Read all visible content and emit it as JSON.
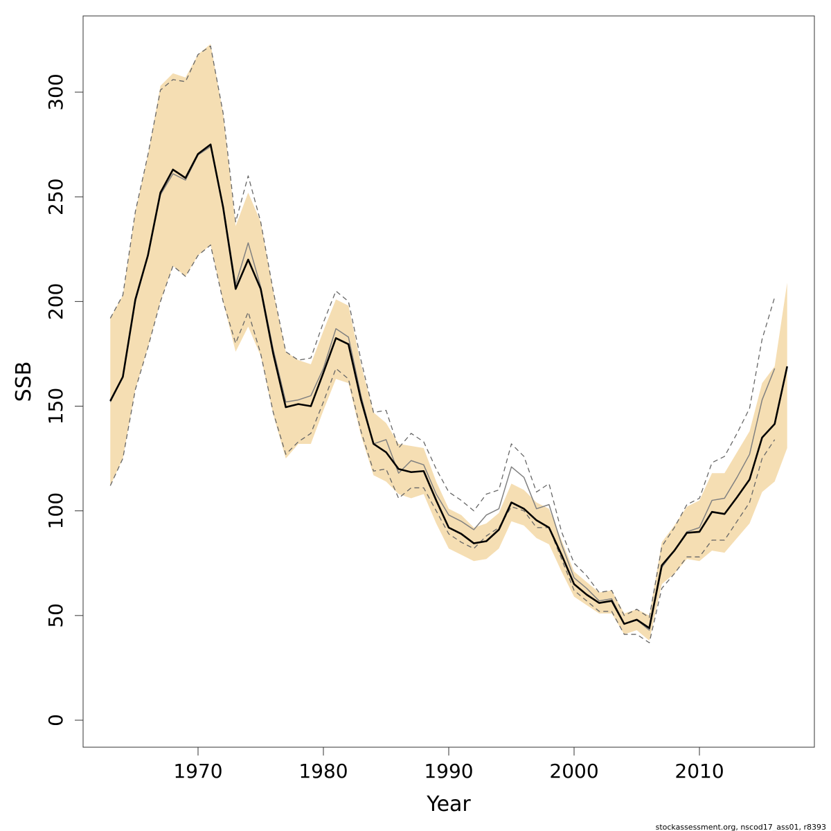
{
  "chart_data": {
    "type": "line",
    "xlabel": "Year",
    "ylabel": "SSB",
    "footnote": "stockassessment.org, nscod17_ass01, r8393",
    "x": [
      1963,
      1964,
      1965,
      1966,
      1967,
      1968,
      1969,
      1970,
      1971,
      1972,
      1973,
      1974,
      1975,
      1976,
      1977,
      1978,
      1979,
      1980,
      1981,
      1982,
      1983,
      1984,
      1985,
      1986,
      1987,
      1988,
      1989,
      1990,
      1991,
      1992,
      1993,
      1994,
      1995,
      1996,
      1997,
      1998,
      1999,
      2000,
      2001,
      2002,
      2003,
      2004,
      2005,
      2006,
      2007,
      2008,
      2009,
      2010,
      2011,
      2012,
      2013,
      2014,
      2015,
      2016,
      2017
    ],
    "band": {
      "color": "#f5deb3",
      "upper": [
        192,
        203,
        243,
        270,
        303,
        309,
        307,
        318,
        323,
        290,
        236,
        252,
        238,
        205,
        176,
        172,
        170,
        186,
        201,
        198,
        170,
        147,
        142,
        132,
        131,
        130,
        114,
        101,
        98,
        92,
        94,
        99,
        113,
        110,
        104,
        101,
        86,
        71,
        66,
        61,
        62,
        51,
        53,
        50,
        85,
        93,
        102,
        105,
        118,
        118,
        128,
        138,
        161,
        169,
        209
      ],
      "lower": [
        112,
        125,
        158,
        178,
        200,
        217,
        212,
        222,
        227,
        200,
        176,
        188,
        174,
        146,
        125,
        132,
        132,
        148,
        163,
        161,
        136,
        117,
        114,
        108,
        106,
        108,
        94,
        82,
        79,
        76,
        77,
        82,
        95,
        93,
        87,
        84,
        71,
        59,
        55,
        51,
        51,
        41,
        43,
        38,
        65,
        70,
        77,
        76,
        81,
        80,
        87,
        94,
        109,
        114,
        130
      ]
    },
    "series": [
      {
        "color": "#808080",
        "width": 1.5,
        "dash": false,
        "values": [
          152,
          164,
          200,
          222,
          251,
          261,
          258,
          270,
          274,
          246,
          208,
          228,
          207,
          177,
          152,
          153,
          155,
          168,
          187,
          183,
          155,
          132,
          134,
          118,
          124,
          122,
          108,
          98,
          95,
          91,
          98,
          101,
          121,
          116,
          101,
          103,
          84,
          68,
          63,
          57,
          58,
          46,
          48,
          43,
          73,
          81,
          90,
          92,
          105,
          106,
          116,
          127,
          153,
          168,
          null
        ]
      },
      {
        "color": "#666666",
        "width": 1.3,
        "dash": true,
        "values": [
          192,
          203,
          243,
          270,
          301,
          306,
          305,
          318,
          322,
          290,
          238,
          260,
          238,
          205,
          176,
          172,
          173,
          190,
          205,
          200,
          172,
          147,
          148,
          130,
          137,
          133,
          120,
          109,
          105,
          100,
          108,
          110,
          132,
          126,
          109,
          113,
          90,
          75,
          69,
          61,
          62,
          50,
          53,
          49,
          83,
          92,
          103,
          106,
          123,
          126,
          137,
          149,
          182,
          202,
          null
        ]
      },
      {
        "color": "#666666",
        "width": 1.3,
        "dash": true,
        "values": [
          112,
          125,
          158,
          178,
          200,
          217,
          212,
          222,
          227,
          200,
          180,
          195,
          175,
          147,
          127,
          133,
          137,
          152,
          168,
          163,
          138,
          119,
          120,
          106,
          111,
          111,
          100,
          89,
          85,
          82,
          88,
          92,
          102,
          100,
          92,
          92,
          77,
          62,
          57,
          52,
          52,
          41,
          41,
          37,
          63,
          70,
          78,
          78,
          86,
          86,
          95,
          104,
          125,
          134,
          null
        ]
      },
      {
        "color": "#000000",
        "width": 2.6,
        "dash": false,
        "values": [
          152.5,
          164,
          201,
          222,
          252,
          263,
          259,
          270.5,
          275,
          245,
          206,
          220,
          206,
          175,
          149.5,
          151,
          150,
          166,
          182.5,
          179.6,
          153,
          132,
          128,
          120,
          118.5,
          119,
          105,
          92,
          89,
          84.5,
          85.5,
          91,
          104,
          101,
          95.5,
          92,
          79,
          65,
          60,
          56,
          57,
          46,
          48,
          44,
          74,
          81,
          89.5,
          90,
          99.5,
          98.5,
          106.5,
          115,
          135,
          141.5,
          169
        ]
      }
    ],
    "xlim": [
      1960.83,
      2019.17
    ],
    "ylim": [
      -12.9,
      336.4
    ],
    "xticks": [
      1970,
      1980,
      1990,
      2000,
      2010
    ],
    "yticks": [
      0,
      50,
      100,
      150,
      200,
      250,
      300
    ]
  }
}
